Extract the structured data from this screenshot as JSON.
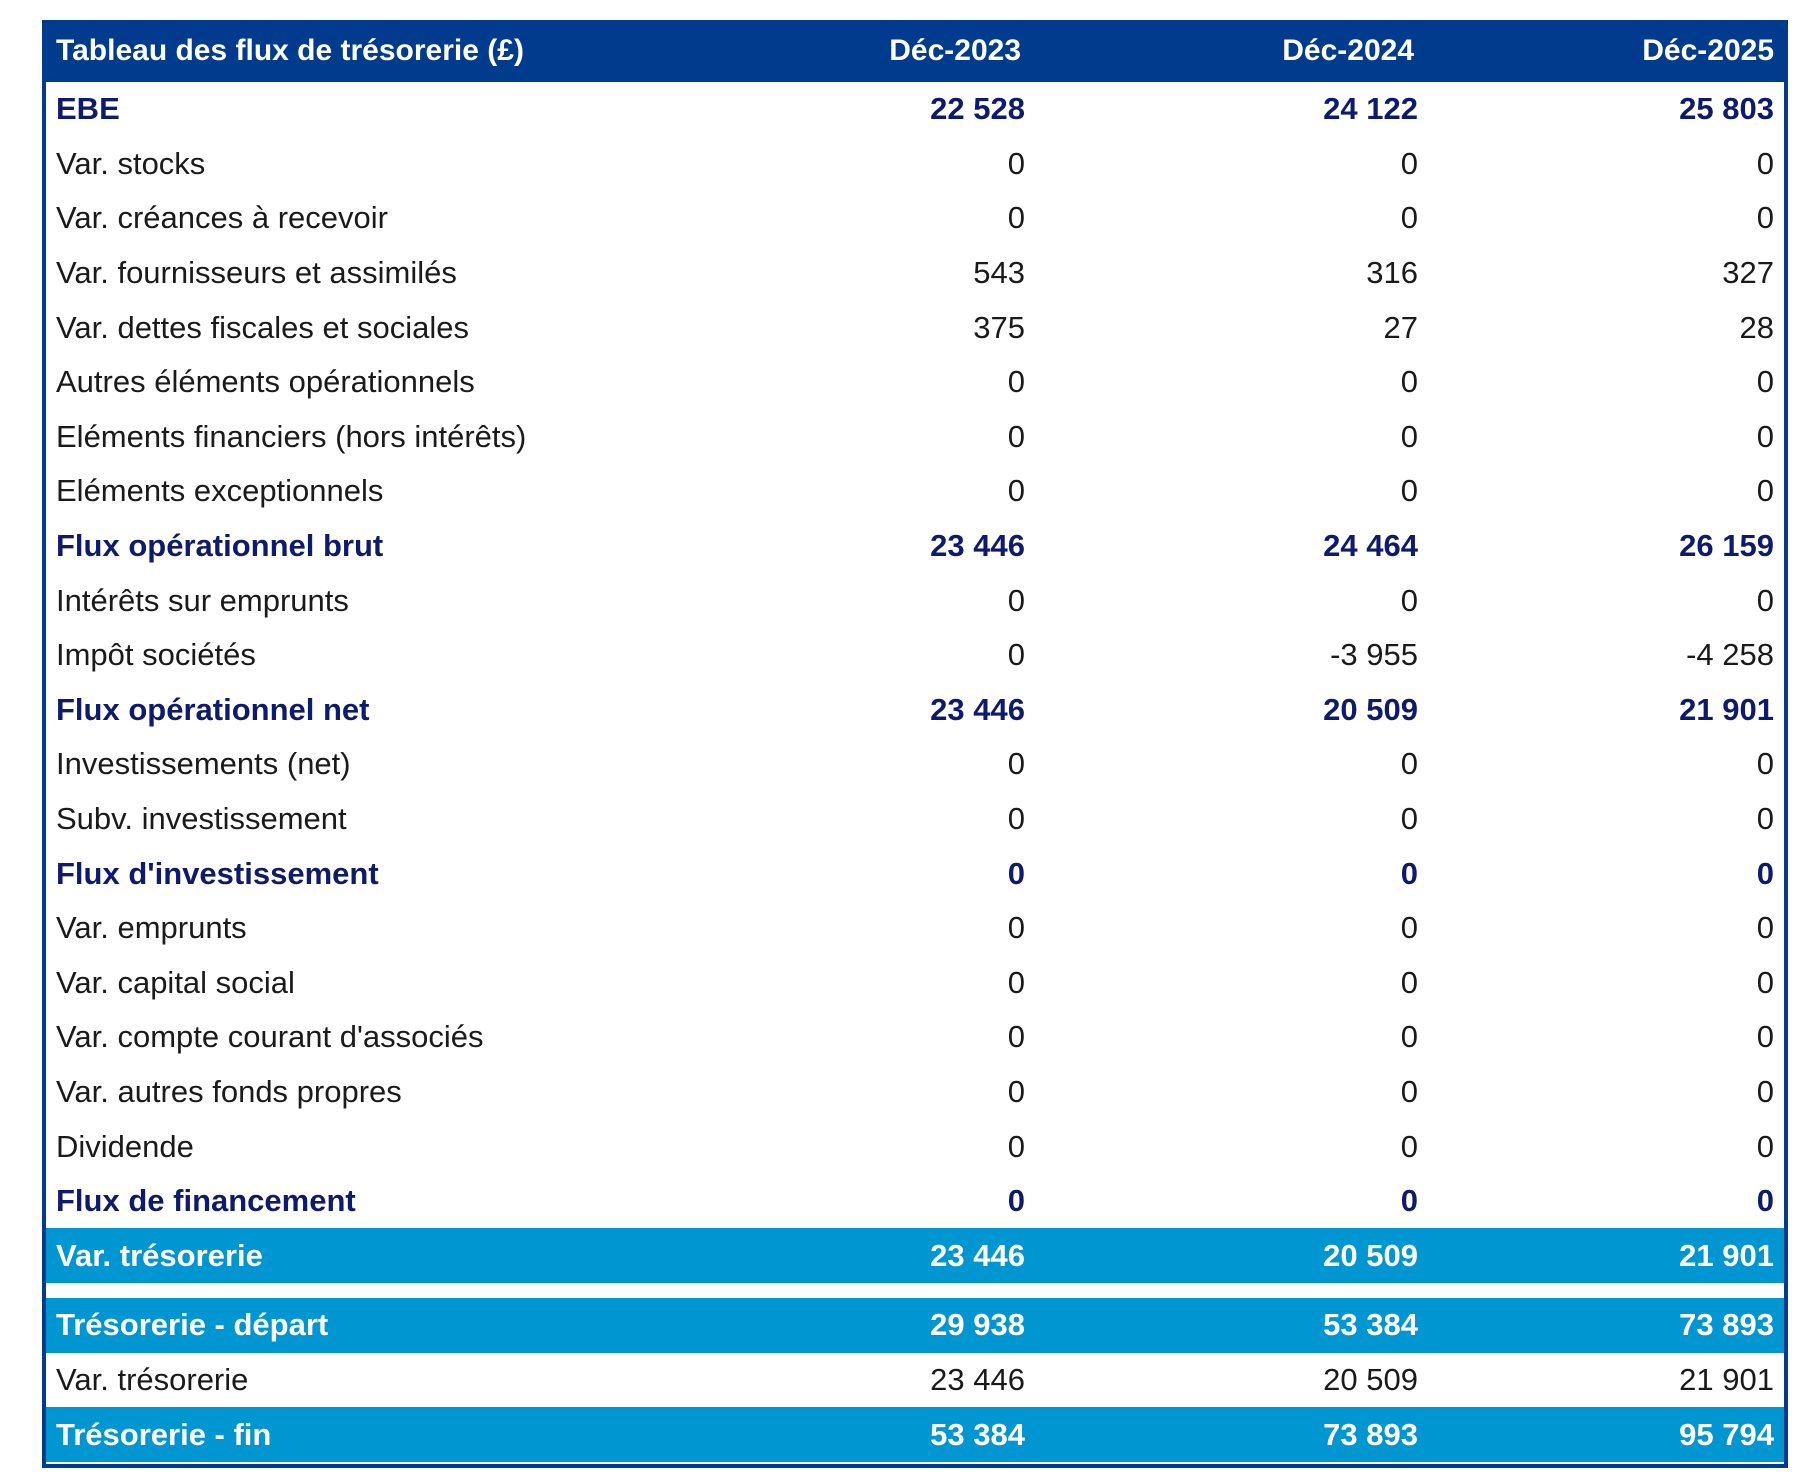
{
  "table": {
    "header": {
      "title": "Tableau des flux de trésorerie (£)",
      "col1": "Déc-2023",
      "col2": "Déc-2024",
      "col3": "Déc-2025"
    },
    "rows": [
      {
        "label": "EBE",
        "v1": "22 528",
        "v2": "24 122",
        "v3": "25 803",
        "style": "bold"
      },
      {
        "label": "Var. stocks",
        "v1": "0",
        "v2": "0",
        "v3": "0",
        "style": "normal"
      },
      {
        "label": "Var. créances à recevoir",
        "v1": "0",
        "v2": "0",
        "v3": "0",
        "style": "normal"
      },
      {
        "label": "Var. fournisseurs et assimilés",
        "v1": "543",
        "v2": "316",
        "v3": "327",
        "style": "normal"
      },
      {
        "label": "Var. dettes fiscales et sociales",
        "v1": "375",
        "v2": "27",
        "v3": "28",
        "style": "normal"
      },
      {
        "label": "Autres éléments opérationnels",
        "v1": "0",
        "v2": "0",
        "v3": "0",
        "style": "normal"
      },
      {
        "label": "Eléments financiers (hors intérêts)",
        "v1": "0",
        "v2": "0",
        "v3": "0",
        "style": "normal"
      },
      {
        "label": "Eléments exceptionnels",
        "v1": "0",
        "v2": "0",
        "v3": "0",
        "style": "normal"
      },
      {
        "label": "Flux opérationnel brut",
        "v1": "23 446",
        "v2": "24 464",
        "v3": "26 159",
        "style": "bold"
      },
      {
        "label": "Intérêts sur emprunts",
        "v1": "0",
        "v2": "0",
        "v3": "0",
        "style": "normal"
      },
      {
        "label": "Impôt sociétés",
        "v1": "0",
        "v2": "-3 955",
        "v3": "-4 258",
        "style": "normal"
      },
      {
        "label": "Flux opérationnel net",
        "v1": "23 446",
        "v2": "20 509",
        "v3": "21 901",
        "style": "bold"
      },
      {
        "label": "Investissements (net)",
        "v1": "0",
        "v2": "0",
        "v3": "0",
        "style": "normal"
      },
      {
        "label": "Subv. investissement",
        "v1": "0",
        "v2": "0",
        "v3": "0",
        "style": "normal"
      },
      {
        "label": "Flux d'investissement",
        "v1": "0",
        "v2": "0",
        "v3": "0",
        "style": "bold"
      },
      {
        "label": "Var. emprunts",
        "v1": "0",
        "v2": "0",
        "v3": "0",
        "style": "normal"
      },
      {
        "label": "Var. capital social",
        "v1": "0",
        "v2": "0",
        "v3": "0",
        "style": "normal"
      },
      {
        "label": "Var. compte courant d'associés",
        "v1": "0",
        "v2": "0",
        "v3": "0",
        "style": "normal"
      },
      {
        "label": "Var. autres fonds propres",
        "v1": "0",
        "v2": "0",
        "v3": "0",
        "style": "normal"
      },
      {
        "label": "Dividende",
        "v1": "0",
        "v2": "0",
        "v3": "0",
        "style": "normal"
      },
      {
        "label": "Flux de financement",
        "v1": "0",
        "v2": "0",
        "v3": "0",
        "style": "bold"
      },
      {
        "label": "Var. trésorerie",
        "v1": "23 446",
        "v2": "20 509",
        "v3": "21 901",
        "style": "highlight"
      }
    ],
    "summary_rows": [
      {
        "label": "Trésorerie - départ",
        "v1": "29 938",
        "v2": "53 384",
        "v3": "73 893",
        "style": "highlight"
      },
      {
        "label": "Var. trésorerie",
        "v1": "23 446",
        "v2": "20 509",
        "v3": "21 901",
        "style": "normal"
      },
      {
        "label": "Trésorerie - fin",
        "v1": "53 384",
        "v2": "73 893",
        "v3": "95 794",
        "style": "highlight"
      }
    ]
  },
  "colors": {
    "header_bg": "#003b8e",
    "highlight_bg": "#0096d1",
    "bold_text": "#0d1a6e"
  }
}
